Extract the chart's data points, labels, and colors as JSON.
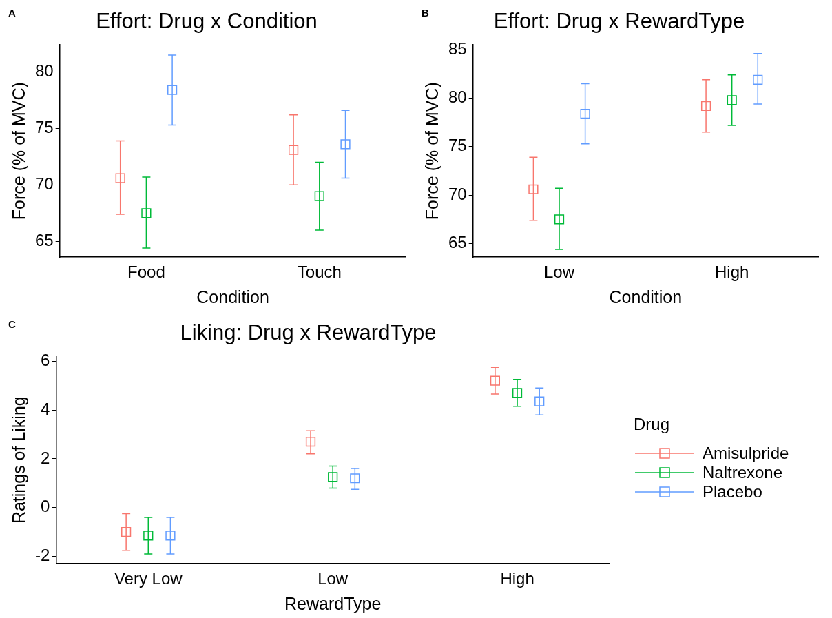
{
  "chart_data": [
    {
      "type": "scatter",
      "title": "Effort: Drug x Condition",
      "xlabel": "Condition",
      "ylabel": "Force (% of MVC)",
      "annotations": [
        "A"
      ],
      "categories": [
        "Food",
        "Touch"
      ],
      "ylim": [
        63.6,
        82.4
      ],
      "yticks": [
        65,
        70,
        75,
        80
      ],
      "grid": false,
      "marker": "square",
      "series": [
        {
          "color": "#f8766d",
          "values": [
            70.6,
            73.1
          ],
          "errors": [
            [
              67.4,
              73.9
            ],
            [
              70.0,
              76.2
            ]
          ]
        },
        {
          "color": "#00ba38",
          "values": [
            67.5,
            69.0
          ],
          "errors": [
            [
              64.4,
              70.7
            ],
            [
              66.0,
              72.0
            ]
          ]
        },
        {
          "color": "#619cff",
          "values": [
            78.4,
            73.6
          ],
          "errors": [
            [
              75.3,
              81.5
            ],
            [
              70.6,
              76.6
            ]
          ]
        }
      ]
    },
    {
      "type": "scatter",
      "title": "Effort: Drug x RewardType",
      "xlabel": "Condition",
      "ylabel": "Force (% of MVC)",
      "annotations": [
        "B"
      ],
      "categories": [
        "Low",
        "High"
      ],
      "ylim": [
        63.6,
        85.5
      ],
      "yticks": [
        65,
        70,
        75,
        80,
        85
      ],
      "grid": false,
      "marker": "square",
      "series": [
        {
          "color": "#f8766d",
          "values": [
            70.6,
            79.2
          ],
          "errors": [
            [
              67.4,
              73.9
            ],
            [
              76.5,
              81.9
            ]
          ]
        },
        {
          "color": "#00ba38",
          "values": [
            67.5,
            79.8
          ],
          "errors": [
            [
              64.4,
              70.7
            ],
            [
              77.2,
              82.4
            ]
          ]
        },
        {
          "color": "#619cff",
          "values": [
            78.4,
            81.9
          ],
          "errors": [
            [
              75.3,
              81.5
            ],
            [
              79.4,
              84.6
            ]
          ]
        }
      ]
    },
    {
      "type": "scatter",
      "title": "Liking: Drug x RewardType",
      "xlabel": "RewardType",
      "ylabel": "Ratings of Liking",
      "annotations": [
        "C"
      ],
      "categories": [
        "Very Low",
        "Low",
        "High"
      ],
      "ylim": [
        -2.3,
        6.2
      ],
      "yticks": [
        -2,
        0,
        2,
        4,
        6
      ],
      "grid": false,
      "marker": "square",
      "legend": "right",
      "legend_title": "Drug",
      "series": [
        {
          "name": "Amisulpride",
          "color": "#f8766d",
          "values": [
            -1.0,
            2.7,
            5.2
          ],
          "errors": [
            [
              -1.75,
              -0.25
            ],
            [
              2.2,
              3.15
            ],
            [
              4.65,
              5.75
            ]
          ]
        },
        {
          "name": "Naltrexone",
          "color": "#00ba38",
          "values": [
            -1.15,
            1.25,
            4.7
          ],
          "errors": [
            [
              -1.9,
              -0.4
            ],
            [
              0.8,
              1.7
            ],
            [
              4.15,
              5.25
            ]
          ]
        },
        {
          "name": "Placebo",
          "color": "#619cff",
          "values": [
            -1.15,
            1.2,
            4.35
          ],
          "errors": [
            [
              -1.9,
              -0.4
            ],
            [
              0.75,
              1.6
            ],
            [
              3.8,
              4.9
            ]
          ]
        }
      ]
    }
  ]
}
